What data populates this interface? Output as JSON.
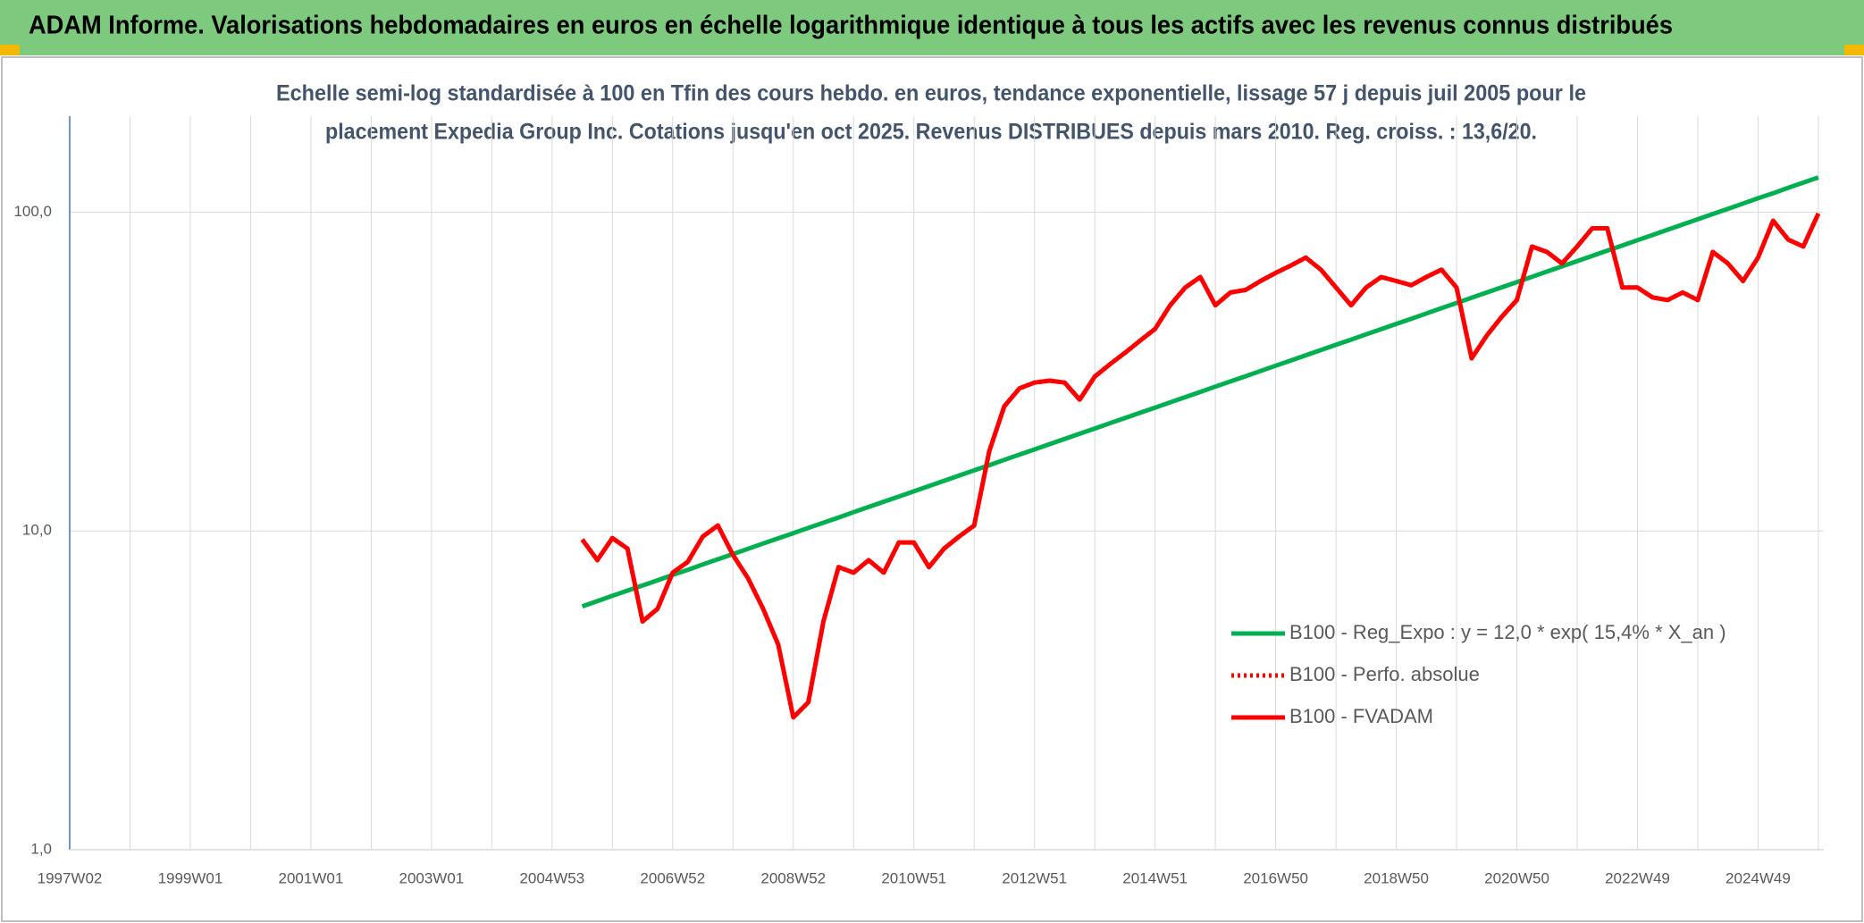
{
  "chart_data": {
    "type": "line",
    "title": "ADAM Informe. Valorisations hebdomadaires en euros en échelle logarithmique identique à tous les actifs avec les revenus connus distribués",
    "subtitle": [
      "Echelle semi-log standardisée à 100 en Tfin des cours hebdo. en euros, tendance exponentielle, lissage 57 j depuis juil 2005 pour le",
      "placement Expedia Group Inc. Cotations jusqu'en oct 2025. Revenus DISTRIBUES depuis mars 2010. Reg. croiss. : 13,6/20."
    ],
    "categories": [
      "1997W02",
      null,
      null,
      null,
      null,
      null,
      null,
      null,
      "1999W01",
      null,
      null,
      null,
      null,
      null,
      null,
      null,
      "2001W01",
      null,
      null,
      null,
      null,
      null,
      null,
      null,
      "2003W01",
      null,
      null,
      null,
      null,
      null,
      null,
      null,
      "2004W53",
      null,
      null,
      null,
      null,
      null,
      null,
      null,
      "2006W52",
      null,
      null,
      null,
      null,
      null,
      null,
      null,
      "2008W52",
      null,
      null,
      null,
      null,
      null,
      null,
      null,
      "2010W51",
      null,
      null,
      null,
      null,
      null,
      null,
      null,
      "2012W51",
      null,
      null,
      null,
      null,
      null,
      null,
      null,
      "2014W51",
      null,
      null,
      null,
      null,
      null,
      null,
      null,
      "2016W50",
      null,
      null,
      null,
      null,
      null,
      null,
      null,
      "2018W50",
      null,
      null,
      null,
      null,
      null,
      null,
      null,
      "2020W50",
      null,
      null,
      null,
      null,
      null,
      null,
      null,
      "2022W49",
      null,
      null,
      null,
      null,
      null,
      null,
      null,
      "2024W49",
      null,
      null,
      null,
      null
    ],
    "yscale": "log",
    "ylim": [
      1,
      200
    ],
    "yticks": [
      {
        "value": 1,
        "label": "1,0"
      },
      {
        "value": 10,
        "label": "10,0"
      },
      {
        "value": 100,
        "label": "100,0"
      }
    ],
    "grid": true,
    "legend": "lower right",
    "series": [
      {
        "name": "B100 - Reg_Expo : y = 12,0 * exp( 15,4% *  X_an )",
        "color": "#00b050",
        "style": "solid",
        "values": [
          null,
          null,
          null,
          null,
          null,
          null,
          null,
          null,
          null,
          null,
          null,
          null,
          null,
          null,
          null,
          null,
          null,
          null,
          null,
          null,
          null,
          null,
          null,
          null,
          null,
          null,
          null,
          null,
          null,
          null,
          null,
          null,
          null,
          null,
          5.8,
          6.02,
          6.26,
          6.5,
          6.74,
          7.0,
          7.28,
          7.55,
          7.85,
          8.15,
          8.46,
          8.79,
          9.13,
          9.48,
          9.84,
          10.22,
          10.61,
          11.02,
          11.45,
          11.89,
          12.35,
          12.82,
          13.31,
          13.83,
          14.36,
          14.91,
          15.49,
          16.08,
          16.7,
          17.35,
          18.01,
          18.71,
          19.43,
          20.18,
          20.95,
          21.76,
          22.6,
          23.47,
          24.37,
          25.31,
          26.28,
          27.3,
          28.35,
          29.44,
          30.57,
          31.75,
          32.97,
          34.24,
          35.56,
          36.93,
          38.35,
          39.83,
          41.36,
          42.95,
          44.61,
          46.32,
          48.11,
          49.96,
          51.88,
          53.88,
          55.96,
          58.11,
          60.35,
          62.67,
          65.09,
          67.59,
          70.19,
          72.9,
          75.7,
          78.62,
          81.65,
          84.79,
          88.06,
          91.45,
          94.97,
          98.63,
          102.4,
          106.4,
          110.5,
          114.7,
          119.2,
          123.7,
          128.5
        ]
      },
      {
        "name": "B100 - Perfo. absolue",
        "color": "#ff0000",
        "style": "dotted",
        "values": [
          null,
          null,
          null,
          null,
          null,
          null,
          null,
          null,
          null,
          null,
          null,
          null,
          null,
          null,
          null,
          null,
          null,
          null,
          null,
          null,
          null,
          null,
          null,
          null,
          null,
          null,
          null,
          null,
          null,
          null,
          null,
          null,
          null,
          null,
          9.4,
          8.1,
          9.5,
          8.8,
          5.2,
          5.7,
          7.4,
          8.0,
          9.6,
          10.4,
          8.4,
          7.1,
          5.7,
          4.4,
          2.6,
          2.9,
          5.2,
          7.7,
          7.4,
          8.1,
          7.4,
          9.2,
          9.2,
          7.7,
          8.8,
          9.6,
          10.4,
          17.8,
          24.6,
          28,
          29.2,
          29.6,
          29.2,
          25.8,
          30.5,
          33.3,
          36.2,
          39.5,
          43,
          51,
          58,
          62.6,
          51,
          56,
          57,
          60.8,
          64.5,
          68,
          72,
          66,
          58,
          51,
          58,
          62.6,
          60.8,
          59,
          62.6,
          66,
          58,
          34.8,
          41,
          47,
          53,
          78,
          75,
          69,
          78,
          89,
          89,
          58,
          58,
          54,
          53,
          56,
          53,
          75,
          69,
          60.8,
          72,
          94,
          82,
          78,
          99
        ]
      },
      {
        "name": "B100 - FVADAM",
        "color": "#ff0000",
        "style": "solid",
        "values": [
          null,
          null,
          null,
          null,
          null,
          null,
          null,
          null,
          null,
          null,
          null,
          null,
          null,
          null,
          null,
          null,
          null,
          null,
          null,
          null,
          null,
          null,
          null,
          null,
          null,
          null,
          null,
          null,
          null,
          null,
          null,
          null,
          null,
          null,
          9.4,
          8.1,
          9.5,
          8.8,
          5.2,
          5.7,
          7.4,
          8.0,
          9.6,
          10.4,
          8.4,
          7.1,
          5.7,
          4.4,
          2.6,
          2.9,
          5.2,
          7.7,
          7.4,
          8.1,
          7.4,
          9.2,
          9.2,
          7.7,
          8.8,
          9.6,
          10.4,
          17.8,
          24.6,
          28,
          29.2,
          29.6,
          29.2,
          25.8,
          30.5,
          33.3,
          36.2,
          39.5,
          43,
          51,
          58,
          62.6,
          51,
          56,
          57,
          60.8,
          64.5,
          68,
          72,
          66,
          58,
          51,
          58,
          62.6,
          60.8,
          59,
          62.6,
          66,
          58,
          34.8,
          41,
          47,
          53,
          78,
          75,
          69,
          78,
          89,
          89,
          58,
          58,
          54,
          53,
          56,
          53,
          75,
          69,
          60.8,
          72,
          94,
          82,
          78,
          99
        ]
      }
    ]
  }
}
